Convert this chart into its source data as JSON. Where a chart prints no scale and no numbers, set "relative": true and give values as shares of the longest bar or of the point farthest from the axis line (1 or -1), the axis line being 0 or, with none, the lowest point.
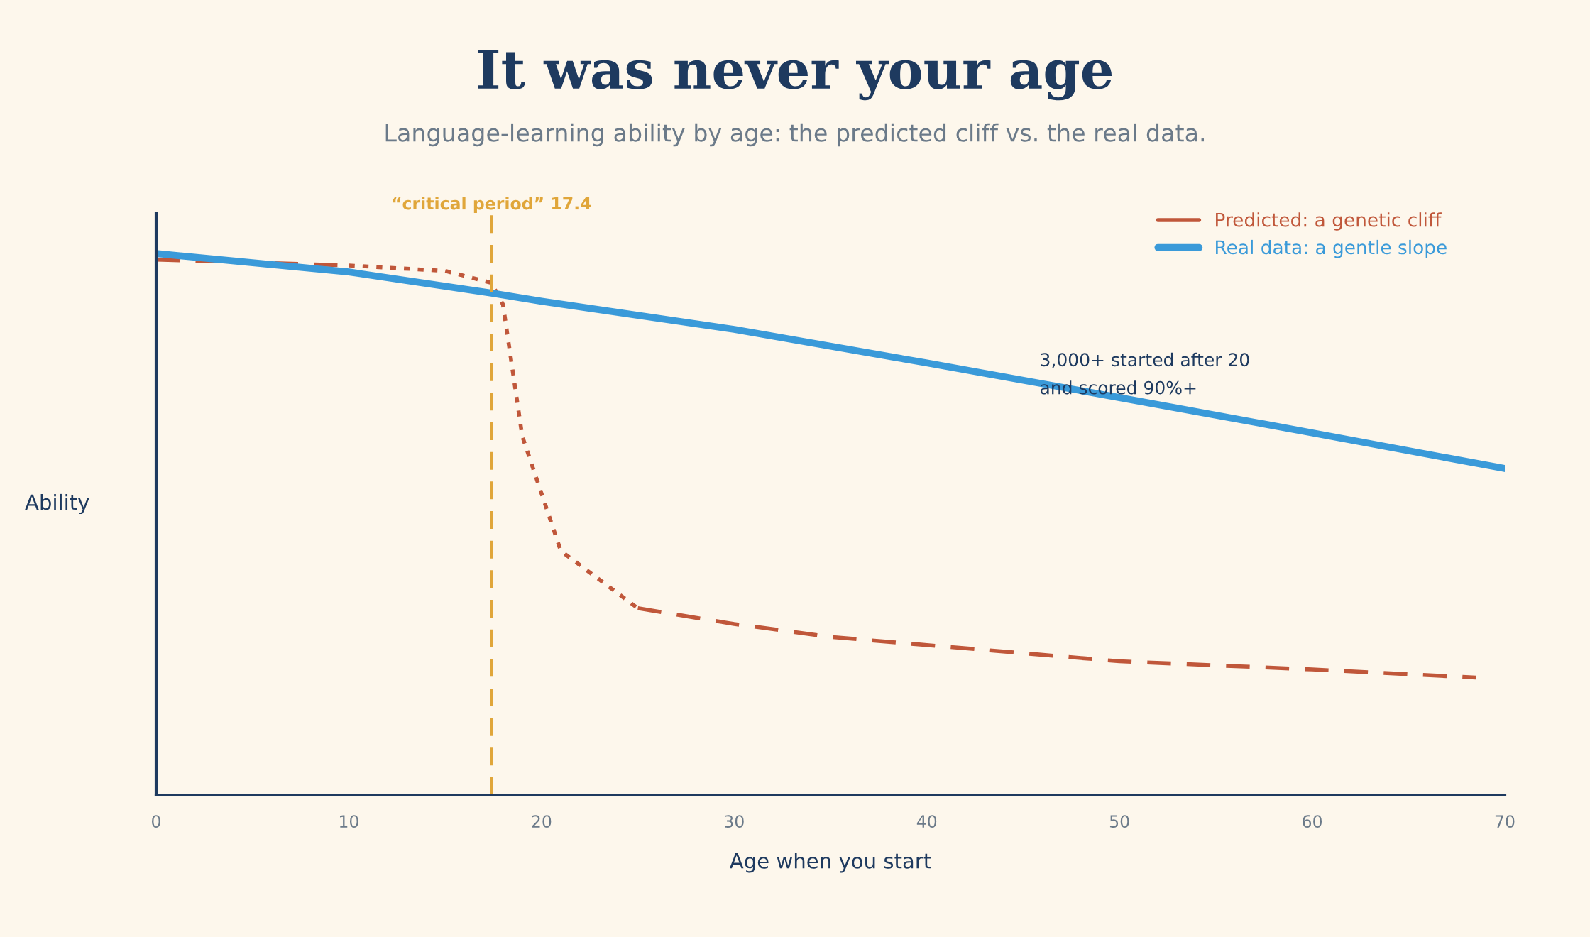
{
  "chart_data": {
    "type": "line",
    "title": "It was never your age",
    "subtitle": "Language-learning ability by age: the predicted cliff vs. the real data.",
    "xlabel": "Age when you start",
    "ylabel": "Ability",
    "relative": true,
    "xlim": [
      0,
      70
    ],
    "xticks": [
      0,
      10,
      20,
      30,
      40,
      50,
      60,
      70
    ],
    "grid": false,
    "legend": "top right",
    "marker": "none",
    "series": [
      {
        "name": "Predicted: a genetic cliff",
        "color": "#c0573a",
        "line_style": "dashed",
        "x": [
          0,
          10,
          15,
          17.4,
          18,
          19,
          21,
          25,
          30,
          35,
          40,
          50,
          60,
          68.5
        ],
        "values": [
          0.989,
          0.978,
          null,
          null,
          null,
          null,
          null,
          0.345,
          0.316,
          0.292,
          0.277,
          0.247,
          0.232,
          0.217
        ]
      },
      {
        "color": "#c0573a",
        "line_style": "dotted",
        "x": [
          10,
          15,
          17.4,
          18,
          19,
          21,
          25
        ],
        "values": [
          0.978,
          0.968,
          0.946,
          0.906,
          0.663,
          0.451,
          0.345
        ]
      },
      {
        "name": "Real data: a gentle slope",
        "color": "#3a9ad9",
        "line_style": "solid",
        "x": [
          0,
          10,
          17.4,
          20,
          30,
          40,
          50,
          60,
          70
        ],
        "values": [
          1.0,
          0.966,
          0.927,
          0.912,
          0.86,
          0.798,
          0.734,
          0.669,
          0.603
        ]
      }
    ],
    "ref_lines": [
      {
        "axis": "x",
        "value": 17.4,
        "label": "“critical period” 17.4",
        "color": "#e0a63a",
        "line_style": "dashed"
      }
    ],
    "annotations": [
      "3,000+ started after 20\nand scored 90%+"
    ]
  }
}
